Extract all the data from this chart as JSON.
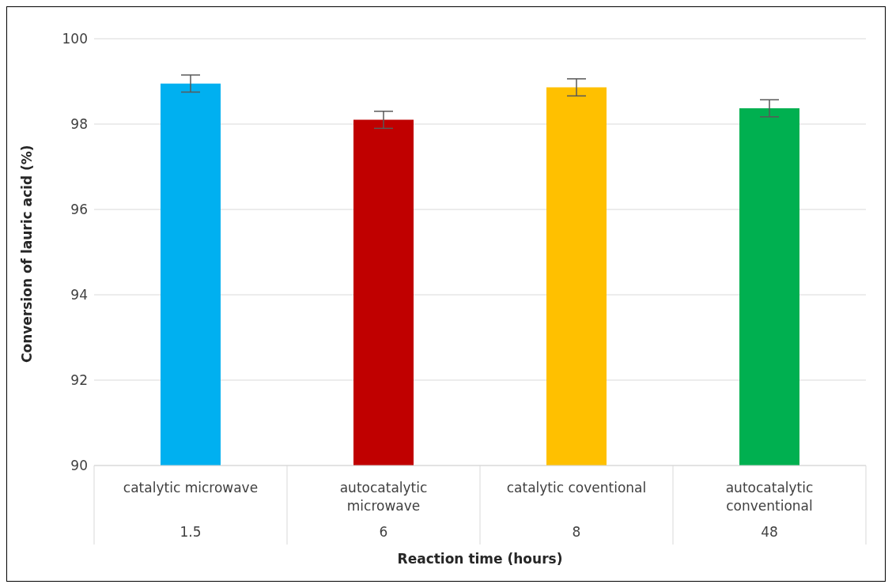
{
  "chart_data": {
    "type": "bar",
    "xlabel": "Reaction time (hours)",
    "ylabel": "Conversion of lauric acid (%)",
    "categories": [
      "catalytic microwave\n1.5",
      "autocatalytic microwave\n6",
      "catalytic coventional\n8",
      "autocatalytic conventional\n48"
    ],
    "values": [
      98.95,
      98.1,
      98.86,
      98.37
    ],
    "errors": [
      0.2,
      0.2,
      0.2,
      0.2
    ],
    "colors": [
      "#00b0f0",
      "#c00000",
      "#ffc000",
      "#00b050"
    ],
    "ylim": [
      90,
      100
    ],
    "yticks": [
      90,
      92,
      94,
      96,
      98,
      100
    ],
    "grid": "y",
    "legend": false
  }
}
